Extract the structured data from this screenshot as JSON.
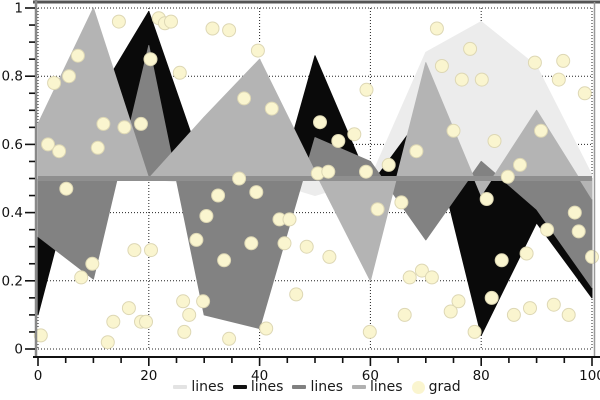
{
  "chart_data": {
    "type": "area",
    "title": "",
    "xlabel": "",
    "ylabel": "",
    "xlim": [
      0,
      100
    ],
    "ylim": [
      0,
      1
    ],
    "baseline": 0.5,
    "baseline_color": "#8f8f8f",
    "grid": "dotted",
    "legend_position": "bottom-center",
    "x": [
      0,
      10,
      20,
      30,
      40,
      50,
      60,
      70,
      80,
      90,
      100
    ],
    "series": [
      {
        "name": "lines",
        "color": "#ececec",
        "values": [
          0.48,
          0.5,
          0.5,
          0.48,
          0.5,
          0.45,
          0.5,
          0.87,
          0.96,
          0.83,
          0.51
        ]
      },
      {
        "name": "lines",
        "color": "#0a0a0a",
        "values": [
          0.1,
          0.72,
          0.99,
          0.52,
          0.28,
          0.86,
          0.48,
          0.7,
          0.04,
          0.37,
          0.15
        ]
      },
      {
        "name": "lines",
        "color": "#828282",
        "values": [
          0.33,
          0.205,
          0.89,
          0.1,
          0.06,
          0.62,
          0.55,
          0.32,
          0.55,
          0.41,
          0.18
        ]
      },
      {
        "name": "lines",
        "color": "#b4b4b4",
        "values": [
          0.66,
          1.0,
          0.5,
          0.68,
          0.85,
          0.52,
          0.2,
          0.84,
          0.45,
          0.7,
          0.44
        ]
      }
    ],
    "scatter": {
      "name": "grad",
      "fill": "#faf5cf",
      "edge": "#ddd7b4",
      "radius_px": 6.5,
      "points": [
        [
          0.5,
          0.04
        ],
        [
          1.8,
          0.6
        ],
        [
          2.9,
          0.78
        ],
        [
          3.8,
          0.58
        ],
        [
          5.1,
          0.47
        ],
        [
          5.6,
          0.8
        ],
        [
          7.2,
          0.86
        ],
        [
          7.8,
          0.21
        ],
        [
          9.8,
          0.25
        ],
        [
          10.8,
          0.59
        ],
        [
          11.8,
          0.66
        ],
        [
          12.6,
          0.02
        ],
        [
          13.6,
          0.08
        ],
        [
          14.6,
          0.96
        ],
        [
          15.6,
          0.65
        ],
        [
          16.4,
          0.12
        ],
        [
          17.4,
          0.29
        ],
        [
          18.6,
          0.66
        ],
        [
          18.6,
          0.08
        ],
        [
          19.5,
          0.08
        ],
        [
          20.3,
          0.85
        ],
        [
          20.4,
          0.29
        ],
        [
          21.8,
          0.97
        ],
        [
          22.9,
          0.955
        ],
        [
          24.0,
          0.96
        ],
        [
          25.6,
          0.81
        ],
        [
          26.2,
          0.14
        ],
        [
          26.4,
          0.05
        ],
        [
          27.3,
          0.1
        ],
        [
          28.6,
          0.32
        ],
        [
          29.8,
          0.14
        ],
        [
          30.4,
          0.39
        ],
        [
          31.5,
          0.94
        ],
        [
          32.5,
          0.45
        ],
        [
          33.6,
          0.26
        ],
        [
          34.5,
          0.935
        ],
        [
          34.5,
          0.03
        ],
        [
          36.3,
          0.5
        ],
        [
          37.2,
          0.735
        ],
        [
          38.5,
          0.31
        ],
        [
          39.4,
          0.46
        ],
        [
          39.7,
          0.875
        ],
        [
          41.2,
          0.06
        ],
        [
          42.2,
          0.705
        ],
        [
          43.6,
          0.38
        ],
        [
          44.5,
          0.31
        ],
        [
          45.4,
          0.38
        ],
        [
          46.6,
          0.16
        ],
        [
          48.5,
          0.3
        ],
        [
          50.5,
          0.515
        ],
        [
          50.9,
          0.665
        ],
        [
          52.4,
          0.52
        ],
        [
          52.6,
          0.27
        ],
        [
          54.2,
          0.61
        ],
        [
          57.1,
          0.63
        ],
        [
          59.2,
          0.52
        ],
        [
          59.3,
          0.76
        ],
        [
          59.9,
          0.05
        ],
        [
          61.3,
          0.41
        ],
        [
          63.3,
          0.54
        ],
        [
          65.6,
          0.43
        ],
        [
          66.2,
          0.1
        ],
        [
          67.1,
          0.21
        ],
        [
          68.3,
          0.58
        ],
        [
          69.3,
          0.23
        ],
        [
          71.1,
          0.21
        ],
        [
          72.0,
          0.94
        ],
        [
          72.9,
          0.83
        ],
        [
          74.5,
          0.11
        ],
        [
          75.0,
          0.64
        ],
        [
          75.9,
          0.14
        ],
        [
          76.5,
          0.79
        ],
        [
          78.0,
          0.88
        ],
        [
          78.8,
          0.05
        ],
        [
          80.1,
          0.79
        ],
        [
          81.0,
          0.44
        ],
        [
          81.9,
          0.15
        ],
        [
          82.4,
          0.61
        ],
        [
          83.7,
          0.26
        ],
        [
          84.8,
          0.505
        ],
        [
          85.9,
          0.1
        ],
        [
          87.0,
          0.54
        ],
        [
          88.2,
          0.28
        ],
        [
          88.8,
          0.12
        ],
        [
          89.7,
          0.84
        ],
        [
          90.8,
          0.64
        ],
        [
          91.9,
          0.35
        ],
        [
          93.1,
          0.13
        ],
        [
          94.0,
          0.79
        ],
        [
          94.8,
          0.845
        ],
        [
          95.8,
          0.1
        ],
        [
          96.9,
          0.4
        ],
        [
          97.6,
          0.345
        ],
        [
          98.7,
          0.75
        ],
        [
          100,
          0.27
        ]
      ]
    },
    "x_ticks": [
      {
        "v": 0,
        "label": "0"
      },
      {
        "v": 20,
        "label": "20"
      },
      {
        "v": 40,
        "label": "40"
      },
      {
        "v": 60,
        "label": "60"
      },
      {
        "v": 80,
        "label": "80"
      },
      {
        "v": 100,
        "label": "100"
      }
    ],
    "y_ticks": [
      {
        "v": 0,
        "label": "0"
      },
      {
        "v": 0.2,
        "label": "0.2"
      },
      {
        "v": 0.4,
        "label": "0.4"
      },
      {
        "v": 0.6,
        "label": "0.6"
      },
      {
        "v": 0.8,
        "label": "0.8"
      },
      {
        "v": 1,
        "label": "1"
      }
    ],
    "x_minor_step": 5,
    "y_minor_step": 0.05
  },
  "legend": {
    "items": [
      {
        "label": "lines",
        "type": "line",
        "color": "#e3e3e3"
      },
      {
        "label": "lines",
        "type": "line",
        "color": "#111111"
      },
      {
        "label": "lines",
        "type": "line",
        "color": "#808080"
      },
      {
        "label": "lines",
        "type": "line",
        "color": "#b0b0b0"
      },
      {
        "label": "grad",
        "type": "dot",
        "color": "#faf5cf"
      }
    ]
  },
  "colors": {
    "spine_left": "#888888",
    "spine_top": "#555555",
    "spine_right": "#999999",
    "spine_bottom": "#111111",
    "grid": "#222222",
    "tick": "#111111",
    "tick_label": "#111111"
  }
}
